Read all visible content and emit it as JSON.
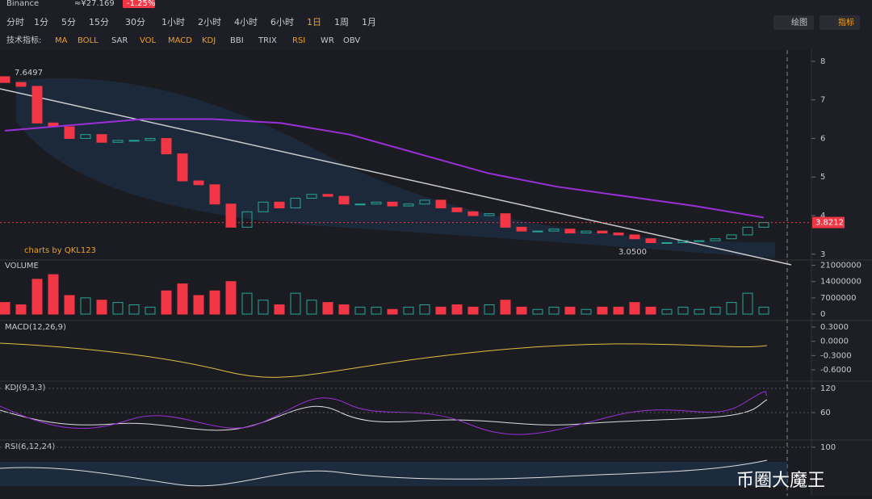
{
  "header": {
    "exchange": "Binance",
    "price": "≈¥27.169",
    "change": "-1.25%"
  },
  "toolbar": {
    "intervals": [
      "分时",
      "1分",
      "5分",
      "15分",
      "30分",
      "1小时",
      "2小时",
      "4小时",
      "6小时",
      "1日",
      "1周",
      "1月"
    ],
    "active": "1日",
    "draw": "绘图",
    "indicator": "指标"
  },
  "indicators": {
    "label": "技术指标:",
    "items": [
      "MA",
      "BOLL",
      "SAR",
      "VOL",
      "MACD",
      "KDJ",
      "BBI",
      "TRIX",
      "RSI",
      "WR",
      "OBV"
    ]
  },
  "chart_data": [
    {
      "type": "candlestick",
      "ylim": [
        2.85,
        8.29
      ],
      "yticks": [
        3,
        4,
        5,
        6,
        7,
        8
      ],
      "open": [
        7.6,
        7.45,
        7.35,
        6.4,
        6.3,
        6.0,
        6.1,
        5.9,
        5.95,
        5.95,
        6.0,
        5.6,
        4.9,
        4.8,
        4.3,
        3.7,
        4.1,
        4.35,
        4.2,
        4.45,
        4.55,
        4.5,
        4.3,
        4.3,
        4.35,
        4.25,
        4.3,
        4.4,
        4.2,
        4.1,
        4.0,
        4.05,
        3.7,
        3.6,
        3.6,
        3.65,
        3.55,
        3.6,
        3.55,
        3.5,
        3.4,
        3.3,
        3.3,
        3.35,
        3.35,
        3.4,
        3.5,
        3.7
      ],
      "close": [
        7.45,
        7.35,
        6.4,
        6.3,
        6.0,
        6.1,
        5.9,
        5.95,
        5.95,
        6.0,
        5.6,
        4.9,
        4.8,
        4.3,
        3.7,
        4.1,
        4.35,
        4.2,
        4.45,
        4.55,
        4.5,
        4.3,
        4.3,
        4.35,
        4.25,
        4.3,
        4.4,
        4.2,
        4.1,
        4.0,
        4.05,
        3.7,
        3.6,
        3.6,
        3.65,
        3.55,
        3.6,
        3.55,
        3.5,
        3.4,
        3.3,
        3.3,
        3.35,
        3.35,
        3.4,
        3.5,
        3.7,
        3.82
      ],
      "up_color": "#26a69a",
      "down_color": "#f23645",
      "ma_line": {
        "color": "#9b30d9",
        "values": [
          6.2,
          6.35,
          6.5,
          6.5,
          6.4,
          6.1,
          5.6,
          5.1,
          4.75,
          4.5,
          4.25,
          3.95
        ]
      },
      "last_price": 3.8212,
      "annotations": [
        "7.6497",
        "3.0500",
        "charts by QKL123"
      ]
    },
    {
      "type": "bar",
      "title": "VOLUME",
      "ylim": [
        0,
        23300000
      ],
      "yticks": [
        {
          "value": 21000000,
          "label": "21000000"
        },
        {
          "value": 14000000,
          "label": "14000000"
        },
        {
          "value": 7000000,
          "label": "7000000"
        },
        0
      ],
      "values": [
        5000000,
        4000000,
        15000000,
        17000000,
        8000000,
        7000000,
        6000000,
        5000000,
        4000000,
        3000000,
        10000000,
        13000000,
        8000000,
        10000000,
        14000000,
        9000000,
        6000000,
        4000000,
        9000000,
        6000000,
        5000000,
        4000000,
        3000000,
        3000000,
        2000000,
        3000000,
        4000000,
        3000000,
        4000000,
        3000000,
        4000000,
        6000000,
        3000000,
        2000000,
        3000000,
        3000000,
        2000000,
        3000000,
        3000000,
        5000000,
        3000000,
        2000000,
        3000000,
        2000000,
        3000000,
        5000000,
        9000000,
        3000000
      ]
    },
    {
      "type": "macd",
      "title": "MACD(12,26,9)",
      "ylim": [
        -0.837,
        0.419
      ],
      "yticks": [
        {
          "value": 0.3,
          "label": "0.3000"
        },
        {
          "value": 0,
          "label": "0.0000"
        },
        {
          "value": -0.3,
          "label": "-0.3000"
        },
        {
          "value": -0.6,
          "label": "-0.6000"
        }
      ]
    },
    {
      "type": "kdj",
      "title": "KDJ(9,3,3)",
      "ylim": [
        -8,
        136
      ],
      "yticks": [
        120,
        60
      ]
    },
    {
      "type": "rsi",
      "title": "RSI(6,12,24)",
      "ylim": [
        0,
        113
      ],
      "yticks": [
        100
      ]
    }
  ],
  "watermark": "币圈大魔王"
}
